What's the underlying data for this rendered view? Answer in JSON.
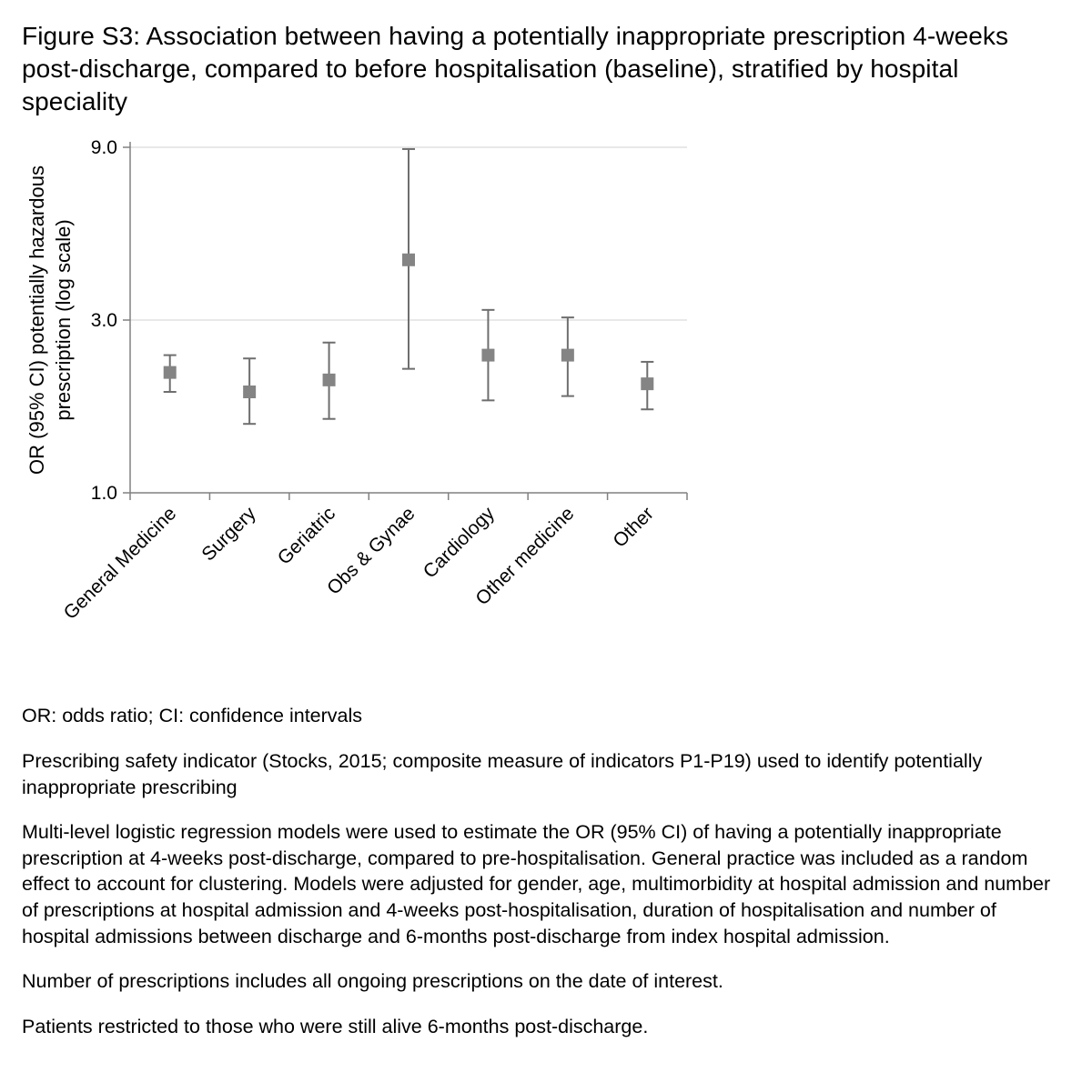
{
  "figure": {
    "title": "Figure S3: Association between having a potentially inappropriate prescription 4-weeks post-discharge, compared to before hospitalisation (baseline), stratified by hospital speciality"
  },
  "chart_data": {
    "type": "scatter",
    "subtype": "forest-plot-with-error-bars",
    "categories": [
      "General Medicine",
      "Surgery",
      "Geriatric",
      "Obs & Gynae",
      "Cardiology",
      "Other medicine",
      "Other"
    ],
    "series": [
      {
        "name": "OR (95% CI) potentially hazardous prescription",
        "values": [
          2.15,
          1.9,
          2.05,
          4.4,
          2.4,
          2.4,
          2.0
        ],
        "ci_lower": [
          1.9,
          1.55,
          1.6,
          2.2,
          1.8,
          1.85,
          1.7
        ],
        "ci_upper": [
          2.4,
          2.35,
          2.6,
          8.9,
          3.2,
          3.05,
          2.3
        ]
      }
    ],
    "title": "",
    "xlabel": "",
    "ylabel_line1": "OR (95% CI) potentially hazardous",
    "ylabel_line2": "prescription (log scale)",
    "yscale": "log",
    "ylim": [
      1.0,
      9.0
    ],
    "yticks": [
      1.0,
      3.0,
      9.0
    ],
    "ytick_labels": [
      "1.0",
      "3.0",
      "9.0"
    ],
    "grid": "horizontal",
    "legend": "none",
    "marker_shape": "square",
    "marker_color": "#848484",
    "errorbar_color": "#6e6e6e",
    "gridline_color": "#d9d9d9",
    "axis_color": "#808080",
    "label_color": "#000000"
  },
  "notes": [
    "OR: odds ratio; CI: confidence intervals",
    "Prescribing safety indicator (Stocks, 2015; composite measure of indicators P1-P19) used to identify potentially inappropriate prescribing",
    "Multi-level logistic regression models were used to estimate the OR (95% CI) of having a potentially inappropriate prescription at 4-weeks post-discharge, compared to pre-hospitalisation.  General practice was included as a random effect to account for clustering.  Models were adjusted for gender, age, multimorbidity at hospital admission and number of prescriptions at hospital admission and 4-weeks post-hospitalisation, duration of hospitalisation and number of hospital admissions between discharge and 6-months post-discharge from index hospital admission.",
    "Number of prescriptions includes all ongoing prescriptions on the date of interest.",
    "Patients restricted to those who were still alive 6-months post-discharge."
  ]
}
